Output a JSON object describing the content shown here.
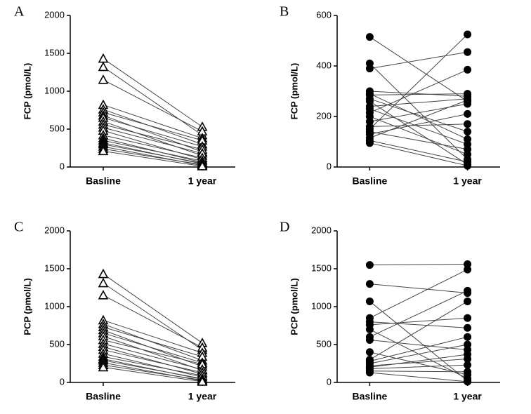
{
  "chart_data": [
    {
      "type": "paired",
      "panel": "A",
      "y_label": "FCP (pmol/L)",
      "categories": [
        "Basline",
        "1 year"
      ],
      "ylim": [
        0,
        2000
      ],
      "yticks": [
        0,
        500,
        1000,
        1500,
        2000
      ],
      "marker": "open-triangle",
      "color": "#000000",
      "pairs": [
        [
          1430,
          530
        ],
        [
          1320,
          420
        ],
        [
          1150,
          470
        ],
        [
          820,
          380
        ],
        [
          760,
          300
        ],
        [
          720,
          350
        ],
        [
          680,
          200
        ],
        [
          650,
          270
        ],
        [
          600,
          150
        ],
        [
          560,
          230
        ],
        [
          520,
          180
        ],
        [
          480,
          100
        ],
        [
          420,
          120
        ],
        [
          380,
          60
        ],
        [
          350,
          80
        ],
        [
          320,
          40
        ],
        [
          300,
          50
        ],
        [
          270,
          20
        ],
        [
          240,
          30
        ],
        [
          210,
          10
        ]
      ]
    },
    {
      "type": "paired",
      "panel": "B",
      "y_label": "FCP (pmol/L)",
      "categories": [
        "Basline",
        "1 year"
      ],
      "ylim": [
        0,
        600
      ],
      "yticks": [
        0,
        200,
        400,
        600
      ],
      "marker": "circle",
      "color": "#000000",
      "pairs": [
        [
          515,
          260
        ],
        [
          410,
          30
        ],
        [
          390,
          455
        ],
        [
          300,
          280
        ],
        [
          290,
          110
        ],
        [
          285,
          290
        ],
        [
          270,
          140
        ],
        [
          260,
          10
        ],
        [
          240,
          270
        ],
        [
          230,
          90
        ],
        [
          215,
          385
        ],
        [
          200,
          50
        ],
        [
          180,
          250
        ],
        [
          160,
          170
        ],
        [
          150,
          525
        ],
        [
          140,
          70
        ],
        [
          130,
          210
        ],
        [
          115,
          265
        ],
        [
          105,
          20
        ],
        [
          95,
          5
        ]
      ]
    },
    {
      "type": "paired",
      "panel": "C",
      "y_label": "PCP (pmol/L)",
      "categories": [
        "Basline",
        "1 year"
      ],
      "ylim": [
        0,
        2000
      ],
      "yticks": [
        0,
        500,
        1000,
        1500,
        2000
      ],
      "marker": "open-triangle",
      "color": "#000000",
      "pairs": [
        [
          1430,
          520
        ],
        [
          1310,
          430
        ],
        [
          1150,
          460
        ],
        [
          820,
          390
        ],
        [
          770,
          290
        ],
        [
          730,
          340
        ],
        [
          690,
          210
        ],
        [
          650,
          260
        ],
        [
          610,
          160
        ],
        [
          560,
          240
        ],
        [
          510,
          170
        ],
        [
          470,
          110
        ],
        [
          430,
          130
        ],
        [
          380,
          70
        ],
        [
          340,
          90
        ],
        [
          310,
          40
        ],
        [
          290,
          50
        ],
        [
          260,
          20
        ],
        [
          230,
          30
        ],
        [
          200,
          10
        ]
      ]
    },
    {
      "type": "paired",
      "panel": "D",
      "y_label": "PCP (pmol/L)",
      "categories": [
        "Basline",
        "1 year"
      ],
      "ylim": [
        0,
        2000
      ],
      "yticks": [
        0,
        500,
        1000,
        1500,
        2000
      ],
      "marker": "circle",
      "color": "#000000",
      "pairs": [
        [
          1550,
          1560
        ],
        [
          1300,
          1180
        ],
        [
          1070,
          20
        ],
        [
          850,
          1490
        ],
        [
          800,
          720
        ],
        [
          760,
          850
        ],
        [
          700,
          50
        ],
        [
          600,
          1210
        ],
        [
          560,
          430
        ],
        [
          400,
          100
        ],
        [
          300,
          1070
        ],
        [
          280,
          600
        ],
        [
          250,
          500
        ],
        [
          220,
          310
        ],
        [
          200,
          370
        ],
        [
          180,
          230
        ],
        [
          150,
          140
        ],
        [
          130,
          10
        ]
      ]
    }
  ]
}
